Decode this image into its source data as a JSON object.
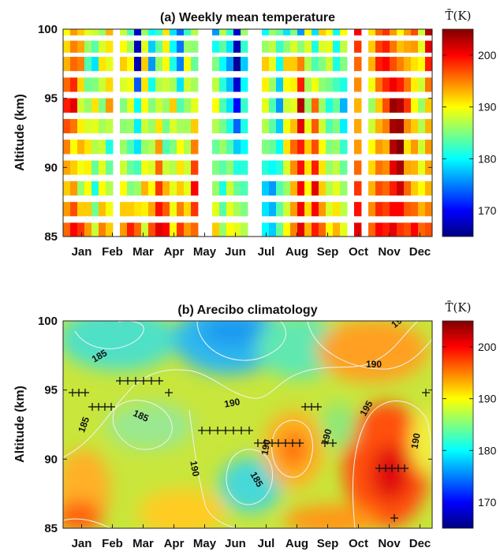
{
  "chart_data": [
    {
      "type": "heatmap",
      "title": "(a) Weekly mean temperature",
      "ylabel": "Altitude (km)",
      "xlabel": "",
      "ylim": [
        85,
        100
      ],
      "yticks": [
        "85",
        "90",
        "95",
        "100"
      ],
      "months": [
        "Jan",
        "Feb",
        "Mar",
        "Apr",
        "May",
        "Jun",
        "Jul",
        "Aug",
        "Sep",
        "Oct",
        "Nov",
        "Dec"
      ],
      "altitudes": [
        85.5,
        88.5,
        91.5,
        94.5,
        97.5,
        100
      ],
      "weeks": [
        [
          196,
          192,
          195,
          199,
          193,
          190
        ],
        [
          200,
          194,
          190,
          201,
          196,
          194
        ],
        [
          198,
          186,
          193,
          188,
          195,
          192
        ],
        [
          194,
          190,
          191,
          186,
          183,
          189
        ],
        [
          188,
          181,
          187,
          191,
          179,
          188
        ],
        [
          195,
          190,
          188,
          185,
          191,
          186
        ],
        [
          192,
          187,
          181,
          194,
          189,
          193
        ],
        [
          null,
          null,
          null,
          null,
          null,
          null
        ],
        [
          194,
          190,
          186,
          185,
          192,
          188
        ],
        [
          199,
          185,
          183,
          189,
          190,
          183
        ],
        [
          196,
          186,
          179,
          180,
          167,
          168
        ],
        [
          188,
          193,
          186,
          190,
          192,
          186
        ],
        [
          197,
          190,
          187,
          185,
          176,
          180
        ],
        [
          201,
          198,
          194,
          188,
          186,
          182
        ],
        [
          200,
          193,
          183,
          186,
          190,
          191
        ],
        [
          190,
          189,
          185,
          192,
          181,
          179
        ],
        [
          198,
          192,
          190,
          183,
          175,
          174
        ],
        [
          194,
          189,
          187,
          186,
          190,
          182
        ],
        [
          196,
          200,
          195,
          189,
          184,
          187
        ],
        [
          null,
          null,
          null,
          null,
          null,
          null
        ],
        [
          null,
          null,
          null,
          null,
          null,
          null
        ],
        [
          192,
          186,
          184,
          190,
          185,
          176
        ],
        [
          186,
          181,
          186,
          183,
          180,
          187
        ],
        [
          190,
          188,
          183,
          179,
          176,
          182
        ],
        [
          189,
          184,
          178,
          170,
          166,
          168
        ],
        [
          187,
          183,
          180,
          182,
          178,
          186
        ],
        [
          null,
          null,
          null,
          null,
          null,
          null
        ],
        [
          null,
          null,
          null,
          null,
          null,
          null
        ],
        [
          180,
          178,
          185,
          189,
          192,
          180
        ],
        [
          178,
          176,
          184,
          183,
          189,
          186
        ],
        [
          184,
          183,
          180,
          176,
          180,
          184
        ],
        [
          190,
          186,
          191,
          188,
          192,
          179
        ],
        [
          195,
          193,
          196,
          189,
          192,
          185
        ],
        [
          201,
          200,
          199,
          203,
          195,
          176
        ],
        [
          193,
          190,
          192,
          186,
          187,
          190
        ],
        [
          199,
          201,
          197,
          196,
          183,
          179
        ],
        [
          196,
          192,
          190,
          186,
          185,
          192
        ],
        [
          190,
          187,
          185,
          181,
          188,
          190
        ],
        [
          193,
          189,
          186,
          184,
          181,
          180
        ],
        [
          189,
          186,
          182,
          177,
          185,
          190
        ],
        [
          null,
          null,
          null,
          null,
          null,
          null
        ],
        [
          201,
          198,
          194,
          193,
          196,
          200
        ],
        [
          null,
          null,
          null,
          null,
          null,
          null
        ],
        [
          196,
          193,
          190,
          186,
          193,
          191
        ],
        [
          200,
          197,
          194,
          192,
          199,
          196
        ],
        [
          199,
          196,
          193,
          197,
          200,
          198
        ],
        [
          201,
          199,
          203,
          204,
          197,
          194
        ],
        [
          198,
          202,
          205,
          203,
          195,
          190
        ],
        [
          197,
          196,
          191,
          198,
          193,
          194
        ],
        [
          200,
          192,
          194,
          190,
          191,
          197
        ],
        [
          196,
          190,
          188,
          186,
          190,
          188
        ],
        [
          197,
          193,
          194,
          192,
          199,
          203
        ]
      ],
      "colorbar": {
        "label": "T̄(K)",
        "range": [
          165,
          205
        ],
        "ticks": [
          "170",
          "180",
          "190",
          "200"
        ],
        "colormap": "jet"
      }
    },
    {
      "type": "heatmap",
      "title": "(b) Arecibo climatology",
      "ylabel": "Altitude (km)",
      "xlabel": "",
      "ylim": [
        85,
        100
      ],
      "yticks": [
        "85",
        "90",
        "95",
        "100"
      ],
      "months": [
        "Jan",
        "Feb",
        "Mar",
        "Apr",
        "May",
        "Jun",
        "Jul",
        "Aug",
        "Sep",
        "Oct",
        "Nov",
        "Dec"
      ],
      "contour_labels": [
        "185",
        "185",
        "190",
        "185",
        "190",
        "185",
        "190",
        "190",
        "190",
        "195",
        "190",
        "190"
      ],
      "colorbar": {
        "label": "T̄(K)",
        "range": [
          165,
          205
        ],
        "ticks": [
          "170",
          "180",
          "190",
          "200"
        ],
        "colormap": "jet"
      }
    }
  ]
}
